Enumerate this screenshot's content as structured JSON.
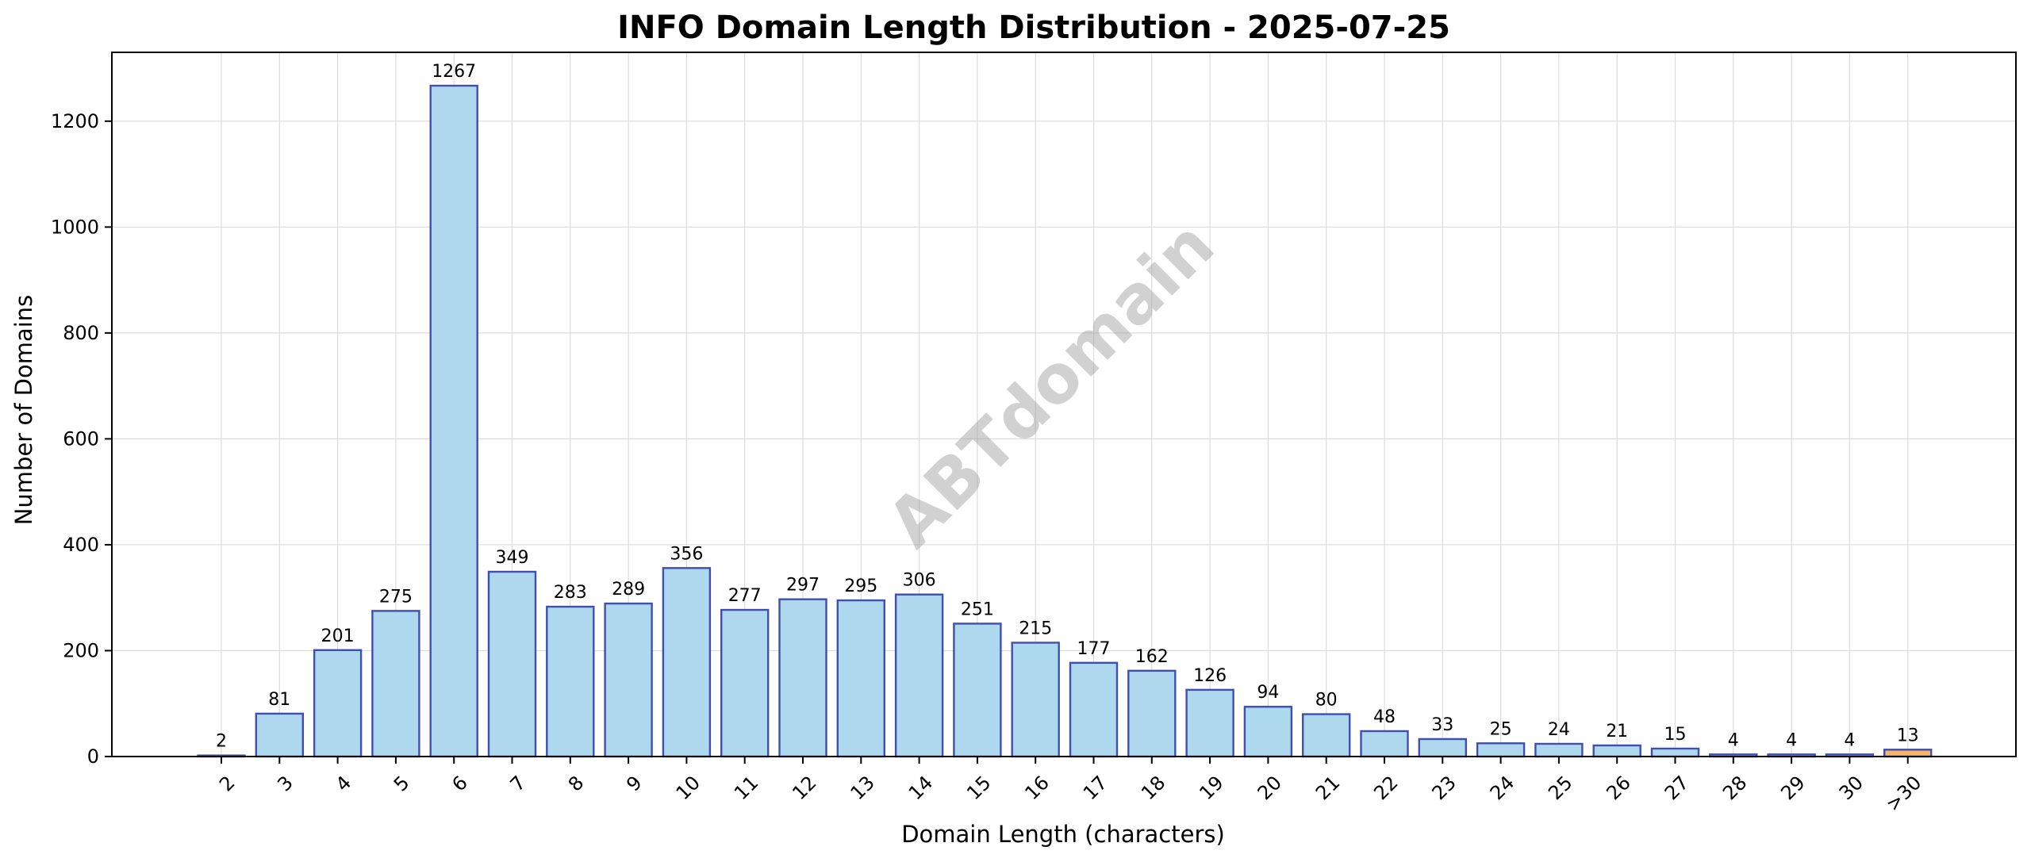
{
  "chart_data": {
    "type": "bar",
    "title": "INFO Domain Length Distribution - 2025-07-25",
    "xlabel": "Domain Length (characters)",
    "ylabel": "Number of Domains",
    "categories": [
      "2",
      "3",
      "4",
      "5",
      "6",
      "7",
      "8",
      "9",
      "10",
      "11",
      "12",
      "13",
      "14",
      "15",
      "16",
      "17",
      "18",
      "19",
      "20",
      "21",
      "22",
      "23",
      "24",
      "25",
      "26",
      "27",
      "28",
      "29",
      "30",
      ">30"
    ],
    "values": [
      2,
      81,
      201,
      275,
      1267,
      349,
      283,
      289,
      356,
      277,
      297,
      295,
      306,
      251,
      215,
      177,
      162,
      126,
      94,
      80,
      48,
      33,
      25,
      24,
      21,
      15,
      4,
      4,
      4,
      13
    ],
    "ylim": [
      0,
      1330
    ],
    "yticks": [
      0,
      200,
      400,
      600,
      800,
      1000,
      1200
    ],
    "grid": true,
    "watermark": "ABTdomain",
    "colors": {
      "bar_fill": "#add8ee",
      "bar_edge": "#3f4eb0",
      "highlight_fill": "#f5b565",
      "highlight_edge": "#3f4eb0"
    },
    "highlight_category": ">30"
  }
}
